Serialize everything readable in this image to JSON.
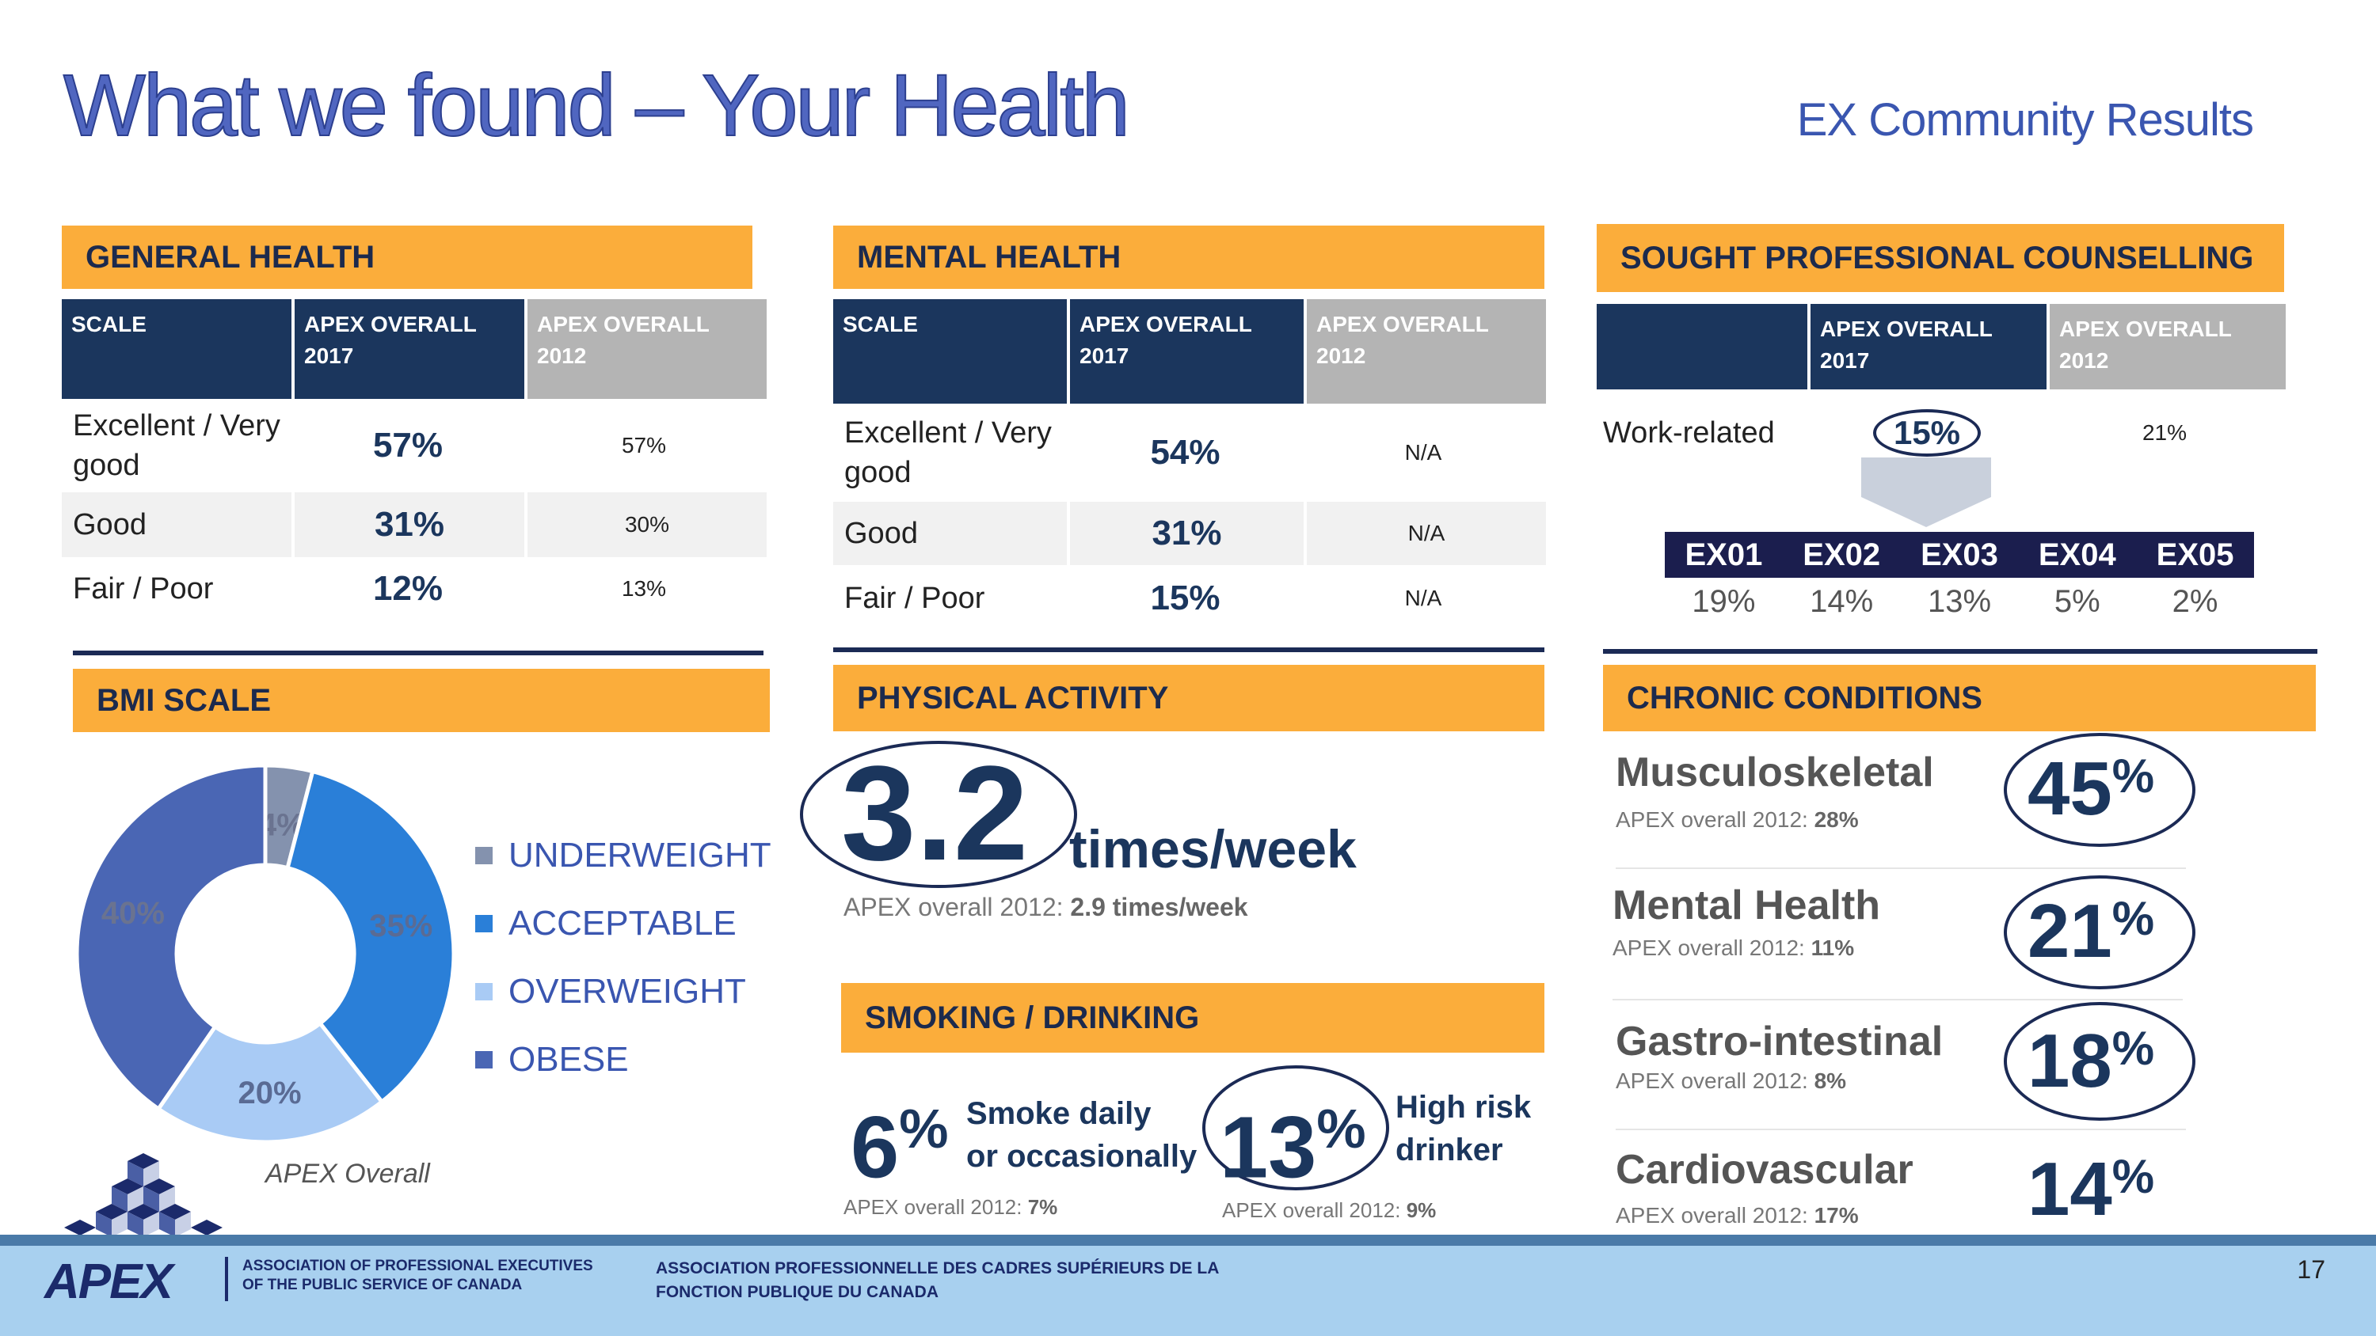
{
  "header": {
    "title": "What we found – Your Health",
    "subtitle": "EX Community Results"
  },
  "general_health": {
    "title": "GENERAL HEALTH",
    "columns": [
      "SCALE",
      "APEX OVERALL 2017",
      "APEX OVERALL 2012"
    ],
    "rows": [
      {
        "label": "Excellent / Very good",
        "y2017": "57%",
        "y2012": "57%"
      },
      {
        "label": "Good",
        "y2017": "31%",
        "y2012": "30%"
      },
      {
        "label": "Fair / Poor",
        "y2017": "12%",
        "y2012": "13%"
      }
    ]
  },
  "mental_health": {
    "title": "MENTAL HEALTH",
    "columns": [
      "SCALE",
      "APEX OVERALL 2017",
      "APEX OVERALL 2012"
    ],
    "rows": [
      {
        "label": "Excellent / Very good",
        "y2017": "54%",
        "y2012": "N/A"
      },
      {
        "label": "Good",
        "y2017": "31%",
        "y2012": "N/A"
      },
      {
        "label": "Fair / Poor",
        "y2017": "15%",
        "y2012": "N/A"
      }
    ]
  },
  "counselling": {
    "title": "SOUGHT PROFESSIONAL COUNSELLING",
    "columns": [
      "",
      "APEX OVERALL 2017",
      "APEX OVERALL 2012"
    ],
    "row": {
      "label": "Work-related",
      "y2017": "15%",
      "y2012": "21%"
    },
    "breakdown_labels": [
      "EX01",
      "EX02",
      "EX03",
      "EX04",
      "EX05"
    ],
    "breakdown_values": [
      "19%",
      "14%",
      "13%",
      "5%",
      "2%"
    ]
  },
  "bmi": {
    "title": "BMI SCALE",
    "caption": "APEX Overall",
    "colors": [
      "#8492ae",
      "#2a7fd8",
      "#a9cbf5",
      "#4a66b4"
    ],
    "legend": [
      "UNDERWEIGHT",
      "ACCEPTABLE",
      "OVERWEIGHT",
      "OBESE"
    ]
  },
  "chart_data": {
    "type": "pie",
    "categories": [
      "UNDERWEIGHT",
      "ACCEPTABLE",
      "OVERWEIGHT",
      "OBESE"
    ],
    "values": [
      4,
      35,
      20,
      40
    ],
    "labels": [
      "4%",
      "35%",
      "20%",
      "40%"
    ],
    "legend_position": "right"
  },
  "physical_activity": {
    "title": "PHYSICAL ACTIVITY",
    "value": "3.2",
    "unit": "times/week",
    "compare_label": "APEX overall 2012:",
    "compare_value": "2.9 times/week"
  },
  "smoking": {
    "title": "SMOKING / DRINKING",
    "smoke_value": "6",
    "smoke_label_1": "Smoke daily",
    "smoke_label_2": "or occasionally",
    "smoke_compare_label": "APEX overall 2012:",
    "smoke_compare_value": "7%",
    "drink_value": "13",
    "drink_label_1": "High risk",
    "drink_label_2": "drinker",
    "drink_compare_label": "APEX overall 2012:",
    "drink_compare_value": "9%",
    "pct_symbol": "%"
  },
  "chronic": {
    "title": "CHRONIC CONDITIONS",
    "compare_label": "APEX overall 2012:",
    "items": [
      {
        "name": "Musculoskeletal",
        "value": "45",
        "compare": "28%"
      },
      {
        "name": "Mental Health",
        "value": "21",
        "compare": "11%"
      },
      {
        "name": "Gastro-intestinal",
        "value": "18",
        "compare": "8%"
      },
      {
        "name": "Cardiovascular",
        "value": "14",
        "compare": "17%"
      }
    ]
  },
  "footer": {
    "logo_text": "APEX",
    "org_en_1": "ASSOCIATION OF PROFESSIONAL EXECUTIVES",
    "org_en_2": "OF THE PUBLIC SERVICE OF CANADA",
    "org_fr_1": "ASSOCIATION PROFESSIONNELLE DES CADRES SUPÉRIEURS DE LA",
    "org_fr_2": "FONCTION PUBLIQUE DU CANADA",
    "page_number": "17"
  }
}
